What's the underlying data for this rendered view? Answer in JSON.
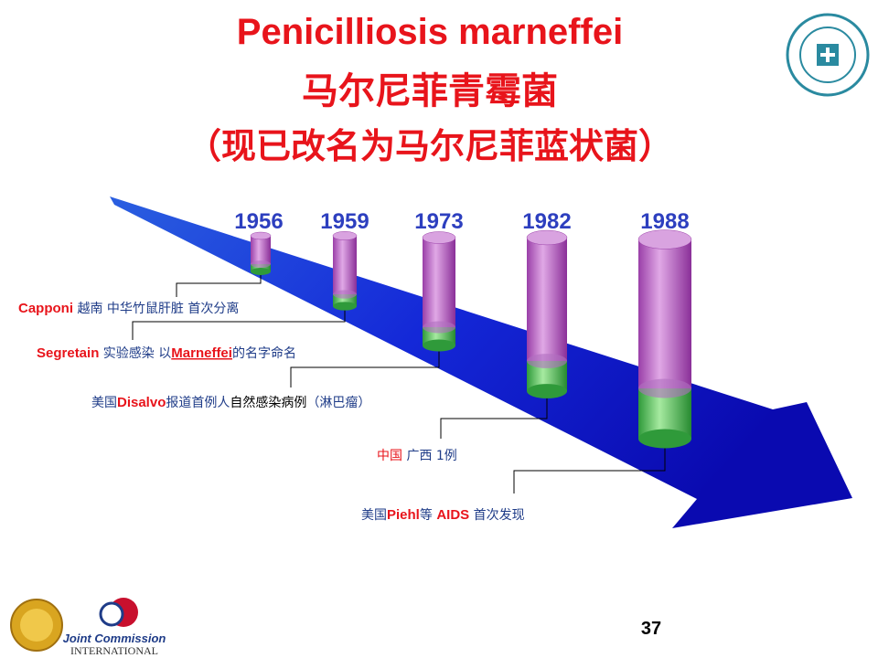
{
  "title": {
    "lines": [
      "Penicilliosis marneffei",
      "马尔尼菲青霉菌",
      "（现已改名为马尔尼菲蓝状菌）"
    ]
  },
  "timeline": {
    "years": [
      "1956",
      "1959",
      "1973",
      "1982",
      "1988"
    ]
  },
  "events": [
    {
      "runs": [
        {
          "text": "Capponi",
          "color": "#e8141b"
        },
        {
          "text": "  越南 中华竹鼠肝脏 首次分离",
          "color": "#1f3c88"
        }
      ]
    },
    {
      "runs": [
        {
          "text": "Segretain",
          "color": "#e8141b"
        },
        {
          "text": " 实验感染 以",
          "color": "#1f3c88"
        },
        {
          "text": "Marneffei",
          "color": "#e8141b",
          "underline": true
        },
        {
          "text": "的名字命名",
          "color": "#1f3c88"
        }
      ]
    },
    {
      "runs": [
        {
          "text": "美国",
          "color": "#1f3c88"
        },
        {
          "text": "Disalvo",
          "color": "#e8141b"
        },
        {
          "text": "报道首例人",
          "color": "#1f3c88"
        },
        {
          "text": "自然感染病例",
          "color": "#000000"
        },
        {
          "text": "（淋巴瘤）",
          "color": "#1f3c88"
        }
      ]
    },
    {
      "runs": [
        {
          "text": "中国",
          "color": "#e8141b"
        },
        {
          "text": " 广西 1例",
          "color": "#1f3c88"
        }
      ]
    },
    {
      "runs": [
        {
          "text": "美国",
          "color": "#1f3c88"
        },
        {
          "text": "Piehl",
          "color": "#e8141b"
        },
        {
          "text": "等 ",
          "color": "#1f3c88"
        },
        {
          "text": "AIDS",
          "color": "#e8141b"
        },
        {
          "text": " 首次发现",
          "color": "#1f3c88"
        }
      ]
    }
  ],
  "footer": {
    "logo_text": [
      "Joint Commission",
      "INTERNATIONAL"
    ],
    "page_number": "37"
  }
}
